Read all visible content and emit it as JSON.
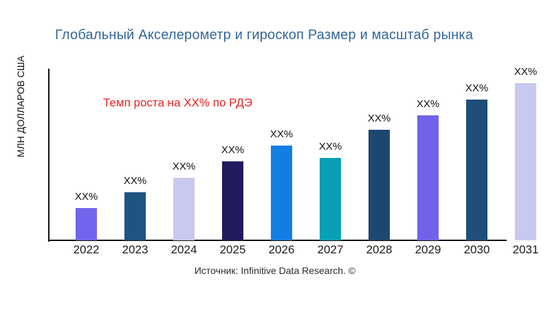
{
  "title": "Глобальный Акселерометр и гироскоп Размер и масштаб рынка",
  "y_axis_label": "МЛН ДОЛЛАРОВ США",
  "annotation": {
    "text": "Темп роста на XX% по РДЭ",
    "color": "#ED2024"
  },
  "source": "Источник: Infinitive Data Research. ©",
  "colors": {
    "title": "#33679B",
    "axis": "#111111",
    "tick_text": "#1A1A1A",
    "source_text": "#2B2B2B",
    "background": "#FFFFFF"
  },
  "chart_data": {
    "type": "bar",
    "title": "Глобальный Акселерометр и гироскоп Размер и масштаб рынка",
    "xlabel": "",
    "ylabel": "МЛН ДОЛЛАРОВ США",
    "categories": [
      "2022",
      "2023",
      "2024",
      "2025",
      "2026",
      "2027",
      "2028",
      "2029",
      "2030",
      "2031"
    ],
    "values": [
      47,
      70,
      91,
      115,
      138,
      120,
      161,
      182,
      205,
      229
    ],
    "values_are_relative": true,
    "value_labels": [
      "XX%",
      "XX%",
      "XX%",
      "XX%",
      "XX%",
      "XX%",
      "XX%",
      "XX%",
      "XX%",
      "XX%"
    ],
    "bar_colors": [
      "#7265EB",
      "#1F5380",
      "#C7C9F0",
      "#211B5E",
      "#127EE3",
      "#09A0B5",
      "#1E4770",
      "#7063EA",
      "#1F4E7A",
      "#C7C9F0"
    ],
    "ylim": [
      0,
      250
    ],
    "grid": false,
    "legend": false,
    "annotation": "Темп роста на XX% по РДЭ"
  }
}
